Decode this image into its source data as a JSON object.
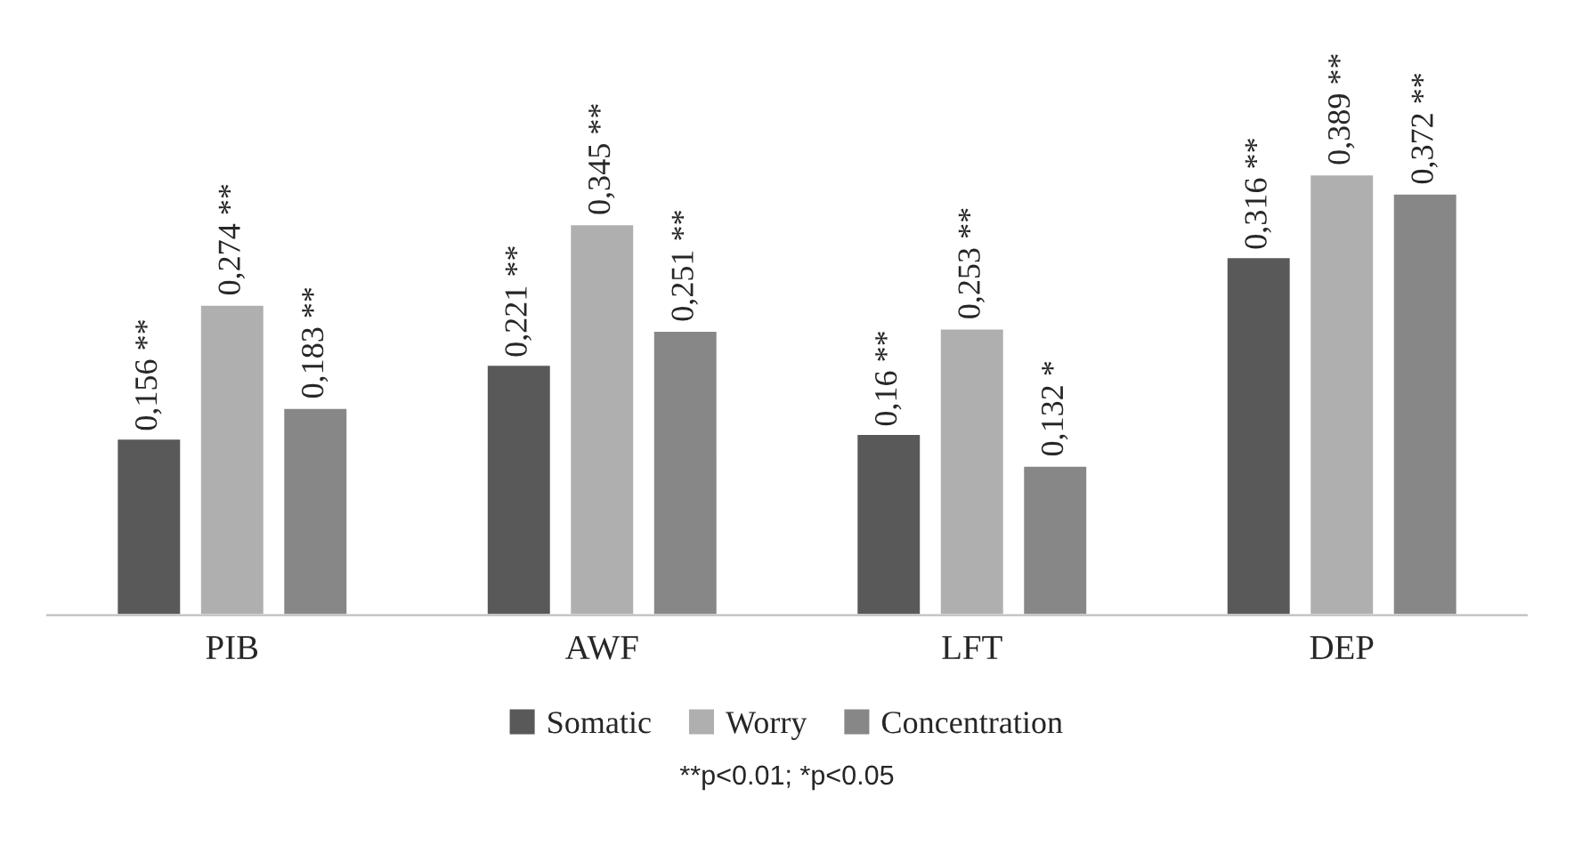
{
  "chart_data": {
    "type": "bar",
    "categories": [
      "PIB",
      "AWF",
      "LFT",
      "DEP"
    ],
    "series": [
      {
        "name": "Somatic",
        "color": "#595959",
        "values": [
          0.156,
          0.221,
          0.16,
          0.316
        ],
        "value_labels": [
          "0,156 **",
          "0,221 **",
          "0,16 **",
          "0,316 **"
        ]
      },
      {
        "name": "Worry",
        "color": "#afafaf",
        "values": [
          0.274,
          0.345,
          0.253,
          0.389
        ],
        "value_labels": [
          "0,274 **",
          "0,345 **",
          "0,253 **",
          "0,389 **"
        ]
      },
      {
        "name": "Concentration",
        "color": "#878787",
        "values": [
          0.183,
          0.251,
          0.132,
          0.372
        ],
        "value_labels": [
          "0,183 **",
          "0,251 **",
          "0,132 *",
          "0,372 **"
        ]
      }
    ],
    "legend": "bottom",
    "grid": false,
    "annotations": [
      "**p<0.01; *p<0.05"
    ]
  }
}
